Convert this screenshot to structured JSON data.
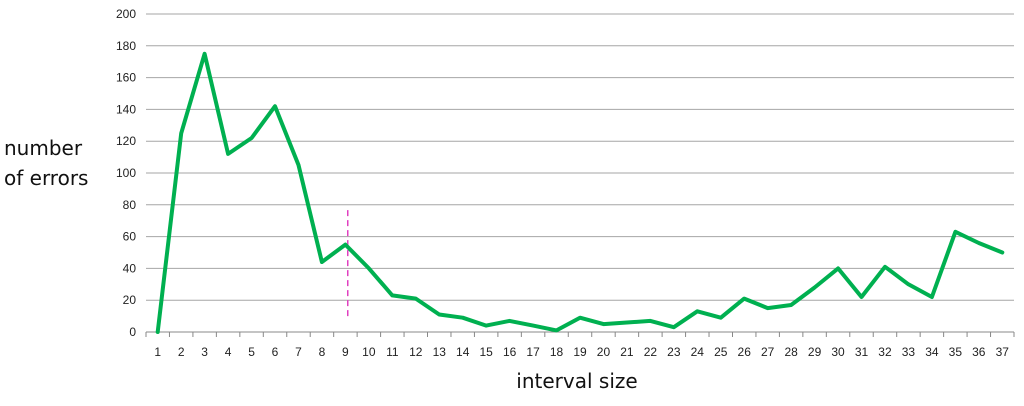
{
  "chart_data": {
    "type": "line",
    "xlabel": "interval size",
    "ylabel_lines": [
      "number",
      "of errors"
    ],
    "x": [
      1,
      2,
      3,
      4,
      5,
      6,
      7,
      8,
      9,
      10,
      11,
      12,
      13,
      14,
      15,
      16,
      17,
      18,
      19,
      20,
      21,
      22,
      23,
      24,
      25,
      26,
      27,
      28,
      29,
      30,
      31,
      32,
      33,
      34,
      35,
      36,
      37
    ],
    "series": [
      {
        "values": [
          0,
          125,
          175,
          112,
          122,
          142,
          105,
          44,
          55,
          40,
          23,
          21,
          11,
          9,
          4,
          7,
          4,
          1,
          9,
          5,
          6,
          7,
          3,
          13,
          9,
          21,
          15,
          17,
          28,
          40,
          22,
          41,
          30,
          22,
          63,
          56,
          50
        ],
        "color": "#00b050"
      }
    ],
    "ylim": [
      0,
      200
    ],
    "yticks": [
      0,
      20,
      40,
      60,
      80,
      100,
      120,
      140,
      160,
      180,
      200
    ],
    "grid": true,
    "legend": "none",
    "annotation": {
      "type": "dashed-vertical-line",
      "x": 9.1,
      "y_from": 10,
      "y_to": 78,
      "color": "#e040c0"
    }
  }
}
